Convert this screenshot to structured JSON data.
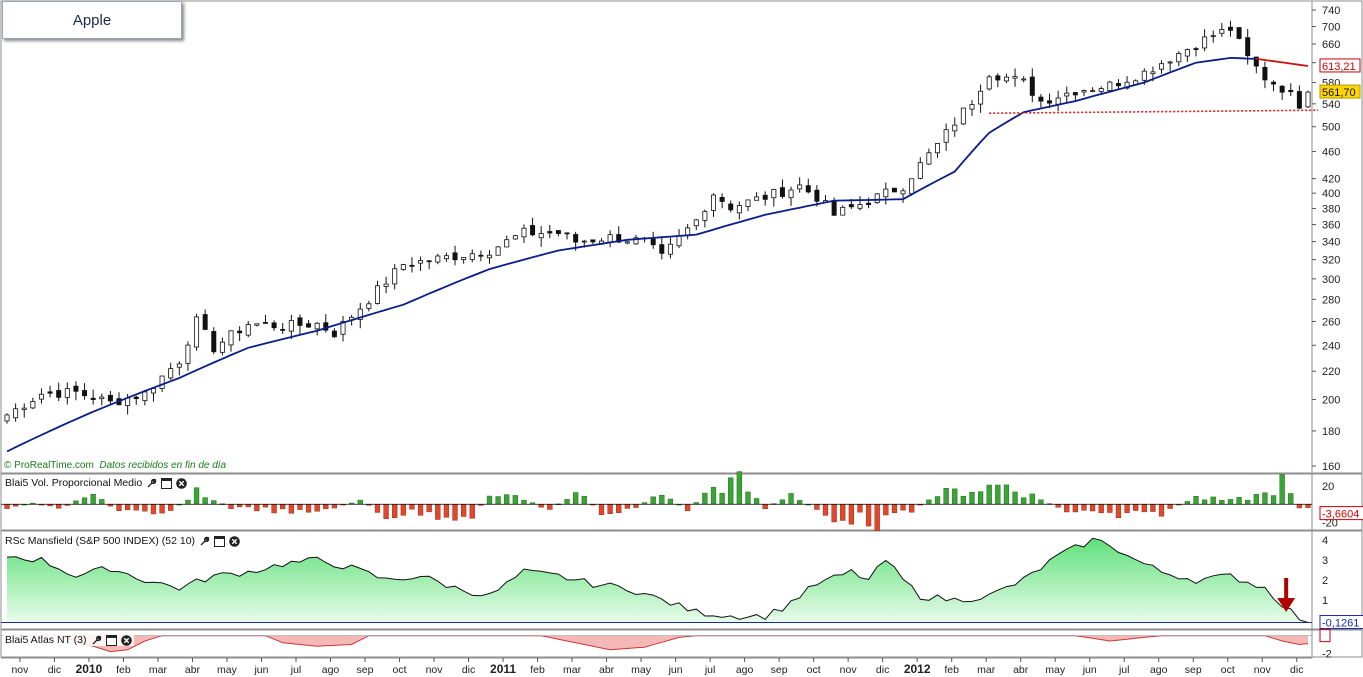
{
  "app": {
    "symbol": "Apple",
    "source": "ProRealTime.com",
    "source_note": "Datos recibidos en fin de día"
  },
  "colors": {
    "ma_line": "#0b1d8a",
    "ma_down_line": "#cc1111",
    "support_line": "#e31b1b",
    "volume_positive": "#3aa535",
    "volume_negative": "#e0482b",
    "rs_fill": "#a9f2b5",
    "atlas_fill": "#f6b7b7",
    "arrow": "#b30000",
    "price_tag": "#ffd400"
  },
  "chart_data": [
    {
      "type": "candlestick",
      "panel": "price",
      "title": "Apple",
      "y_scale": "log",
      "ylim": [
        160,
        745
      ],
      "y_ticks": [
        160,
        180,
        200,
        220,
        240,
        260,
        280,
        300,
        320,
        340,
        360,
        380,
        400,
        420,
        460,
        500,
        540,
        580,
        620,
        660,
        700,
        740
      ],
      "x_labels": [
        "nov",
        "dic",
        "2010",
        "feb",
        "mar",
        "abr",
        "may",
        "jun",
        "jul",
        "ago",
        "sep",
        "oct",
        "nov",
        "dic",
        "2011",
        "feb",
        "mar",
        "abr",
        "may",
        "jun",
        "jul",
        "ago",
        "sep",
        "oct",
        "nov",
        "dic",
        "2012",
        "feb",
        "mar",
        "abr",
        "may",
        "jun",
        "jul",
        "ago",
        "sep",
        "oct",
        "nov",
        "dic"
      ],
      "price_labels": {
        "ma_value": "613,21",
        "last_close": "561,70"
      },
      "close_anchors_weekly": [
        [
          0,
          190
        ],
        [
          4,
          204
        ],
        [
          8,
          205
        ],
        [
          12,
          198
        ],
        [
          16,
          204
        ],
        [
          20,
          228
        ],
        [
          22,
          260
        ],
        [
          24,
          238
        ],
        [
          28,
          258
        ],
        [
          32,
          256
        ],
        [
          36,
          258
        ],
        [
          38,
          250
        ],
        [
          42,
          280
        ],
        [
          46,
          315
        ],
        [
          48,
          318
        ],
        [
          52,
          324
        ],
        [
          56,
          330
        ],
        [
          60,
          350
        ],
        [
          64,
          350
        ],
        [
          66,
          340
        ],
        [
          70,
          345
        ],
        [
          74,
          340
        ],
        [
          76,
          322
        ],
        [
          80,
          365
        ],
        [
          82,
          400
        ],
        [
          84,
          382
        ],
        [
          88,
          395
        ],
        [
          92,
          410
        ],
        [
          94,
          395
        ],
        [
          96,
          372
        ],
        [
          100,
          390
        ],
        [
          104,
          410
        ],
        [
          108,
          470
        ],
        [
          112,
          545
        ],
        [
          114,
          600
        ],
        [
          116,
          590
        ],
        [
          118,
          580
        ],
        [
          120,
          545
        ],
        [
          124,
          565
        ],
        [
          128,
          575
        ],
        [
          132,
          600
        ],
        [
          136,
          640
        ],
        [
          140,
          680
        ],
        [
          142,
          695
        ],
        [
          144,
          630
        ],
        [
          146,
          590
        ],
        [
          148,
          570
        ],
        [
          150,
          540
        ],
        [
          151,
          561.7
        ]
      ],
      "ma_anchors_weekly": [
        [
          0,
          168
        ],
        [
          10,
          192
        ],
        [
          20,
          215
        ],
        [
          28,
          238
        ],
        [
          36,
          252
        ],
        [
          46,
          275
        ],
        [
          56,
          310
        ],
        [
          64,
          330
        ],
        [
          72,
          342
        ],
        [
          80,
          348
        ],
        [
          88,
          372
        ],
        [
          96,
          390
        ],
        [
          104,
          392
        ],
        [
          110,
          430
        ],
        [
          114,
          490
        ],
        [
          118,
          525
        ],
        [
          124,
          545
        ],
        [
          132,
          580
        ],
        [
          138,
          620
        ],
        [
          142,
          630
        ],
        [
          145,
          628
        ],
        [
          151,
          613.21
        ]
      ],
      "ma_down_from_week": 145,
      "support_level": 525
    },
    {
      "type": "bar",
      "panel": "volume",
      "title": "Blai5 Vol. Proporcional Medio",
      "ylim": [
        -25,
        30
      ],
      "y_ticks": [
        20,
        -20
      ],
      "last_value_label": "-3,6604",
      "values_anchors_weekly": [
        [
          0,
          -4
        ],
        [
          3,
          2
        ],
        [
          6,
          -6
        ],
        [
          10,
          12
        ],
        [
          13,
          -10
        ],
        [
          18,
          -14
        ],
        [
          22,
          14
        ],
        [
          26,
          -4
        ],
        [
          30,
          -6
        ],
        [
          33,
          -12
        ],
        [
          37,
          -6
        ],
        [
          41,
          5
        ],
        [
          44,
          -14
        ],
        [
          47,
          -10
        ],
        [
          51,
          -14
        ],
        [
          54,
          -12
        ],
        [
          57,
          18
        ],
        [
          60,
          6
        ],
        [
          63,
          -8
        ],
        [
          66,
          18
        ],
        [
          69,
          -10
        ],
        [
          72,
          -8
        ],
        [
          76,
          12
        ],
        [
          79,
          -6
        ],
        [
          82,
          20
        ],
        [
          85,
          28
        ],
        [
          88,
          -6
        ],
        [
          91,
          14
        ],
        [
          95,
          -14
        ],
        [
          99,
          -18
        ],
        [
          101,
          -22
        ],
        [
          104,
          -14
        ],
        [
          108,
          12
        ],
        [
          112,
          18
        ],
        [
          116,
          24
        ],
        [
          119,
          10
        ],
        [
          123,
          -8
        ],
        [
          127,
          -12
        ],
        [
          130,
          -16
        ],
        [
          134,
          -10
        ],
        [
          138,
          8
        ],
        [
          142,
          4
        ],
        [
          146,
          12
        ],
        [
          148,
          26
        ],
        [
          150,
          -3.66
        ]
      ]
    },
    {
      "type": "area",
      "panel": "rs_mansfield",
      "title": "RSc Mansfield (S&P 500 INDEX) (52 10)",
      "ylim": [
        -0.3,
        4.3
      ],
      "y_ticks": [
        4,
        3,
        2,
        1
      ],
      "reference_line": -0.1261,
      "last_value_label": "-0,1261",
      "values_anchors_weekly": [
        [
          0,
          3.2
        ],
        [
          4,
          3.0
        ],
        [
          8,
          2.2
        ],
        [
          12,
          2.6
        ],
        [
          16,
          2.0
        ],
        [
          20,
          1.6
        ],
        [
          24,
          2.2
        ],
        [
          28,
          2.4
        ],
        [
          32,
          2.8
        ],
        [
          36,
          3.0
        ],
        [
          40,
          2.6
        ],
        [
          44,
          2.0
        ],
        [
          48,
          2.2
        ],
        [
          52,
          1.6
        ],
        [
          56,
          1.2
        ],
        [
          60,
          2.4
        ],
        [
          64,
          2.2
        ],
        [
          68,
          1.8
        ],
        [
          72,
          1.6
        ],
        [
          76,
          1.0
        ],
        [
          80,
          0.4
        ],
        [
          84,
          0.2
        ],
        [
          88,
          0.2
        ],
        [
          90,
          0.6
        ],
        [
          94,
          1.8
        ],
        [
          98,
          2.4
        ],
        [
          100,
          2.0
        ],
        [
          102,
          3.0
        ],
        [
          104,
          2.0
        ],
        [
          106,
          1.2
        ],
        [
          110,
          1.0
        ],
        [
          114,
          1.2
        ],
        [
          118,
          2.0
        ],
        [
          122,
          3.2
        ],
        [
          126,
          4.0
        ],
        [
          128,
          3.8
        ],
        [
          130,
          3.2
        ],
        [
          134,
          2.4
        ],
        [
          138,
          2.0
        ],
        [
          142,
          2.2
        ],
        [
          146,
          1.6
        ],
        [
          148,
          0.8
        ],
        [
          150,
          0.1
        ],
        [
          151,
          -0.1261
        ]
      ]
    },
    {
      "type": "area",
      "panel": "atlas",
      "title": "Blai5 Atlas NT (3)",
      "ylim": [
        -2.3,
        0.3
      ],
      "y_ticks": [
        0,
        -2
      ],
      "values_anchors_weekly": [
        [
          0,
          0
        ],
        [
          6,
          0
        ],
        [
          10,
          -1.2
        ],
        [
          12,
          -1.8
        ],
        [
          14,
          -1.6
        ],
        [
          16,
          -0.6
        ],
        [
          18,
          0
        ],
        [
          30,
          0
        ],
        [
          32,
          -0.8
        ],
        [
          36,
          -1.2
        ],
        [
          40,
          -1.0
        ],
        [
          42,
          0
        ],
        [
          62,
          0
        ],
        [
          66,
          -0.8
        ],
        [
          70,
          -1.6
        ],
        [
          74,
          -1.3
        ],
        [
          78,
          -0.2
        ],
        [
          80,
          0
        ],
        [
          124,
          0
        ],
        [
          128,
          -0.6
        ],
        [
          132,
          -0.2
        ],
        [
          134,
          0
        ],
        [
          146,
          0
        ],
        [
          148,
          -0.6
        ],
        [
          150,
          -1.0
        ],
        [
          151,
          -0.9
        ]
      ]
    }
  ],
  "panels": {
    "volume_label": "Blai5 Vol. Proporcional Medio",
    "rs_label": "RSc Mansfield (S&P 500 INDEX) (52 10)",
    "atlas_label": "Blai5 Atlas NT (3)"
  },
  "icons": [
    "wrench-icon",
    "window-icon",
    "close-icon",
    "arrow-down-icon"
  ]
}
